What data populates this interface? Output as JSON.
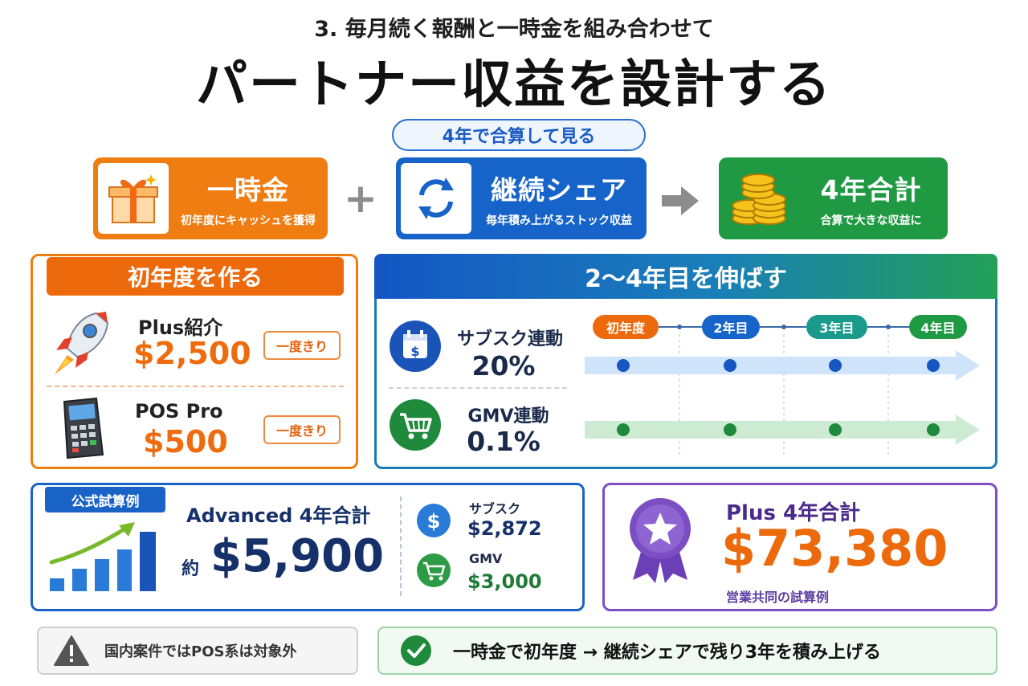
{
  "header": {
    "subtitle": "3. 毎月続く報酬と一時金を組み合わせて",
    "title": "パートナー収益を設計する",
    "pill": "4年で合算して見る"
  },
  "formula": {
    "one_time": {
      "title": "一時金",
      "sub": "初年度にキャッシュを獲得",
      "icon": "gift-icon"
    },
    "plus_sign": "+",
    "recurring": {
      "title": "継続シェア",
      "sub": "毎年積み上がるストック収益",
      "icon": "refresh-icon"
    },
    "total": {
      "title": "4年合計",
      "sub": "合算で大きな収益に",
      "icon": "coins-icon"
    }
  },
  "first_year": {
    "heading": "初年度を作る",
    "items": [
      {
        "name": "Plus紹介",
        "value": "$2,500",
        "badge": "一度きり",
        "icon": "rocket-icon"
      },
      {
        "name": "POS Pro",
        "value": "$500",
        "badge": "一度きり",
        "icon": "pos-terminal-icon"
      }
    ]
  },
  "growth": {
    "heading": "2～4年目を伸ばす",
    "years": [
      "初年度",
      "2年目",
      "3年目",
      "4年目"
    ],
    "streams": [
      {
        "label": "サブスク連動",
        "rate": "20%",
        "icon": "calendar-dollar-icon"
      },
      {
        "label": "GMV連動",
        "rate": "0.1%",
        "icon": "cart-icon"
      }
    ]
  },
  "official_example": {
    "tag": "公式試算例",
    "title": "Advanced 4年合計",
    "approx": "約",
    "value": "$5,900",
    "breakdown": [
      {
        "label": "サブスク",
        "value": "$2,872",
        "icon": "dollar-icon"
      },
      {
        "label": "GMV",
        "value": "$3,000",
        "icon": "cart-icon"
      }
    ]
  },
  "plus_example": {
    "title": "Plus 4年合計",
    "value": "$73,380",
    "note": "営業共同の試算例",
    "icon": "award-star-icon"
  },
  "footer": {
    "warning": "国内案件ではPOS系は対象外",
    "summary": "一時金で初年度 → 継続シェアで残り3年を積み上げる"
  },
  "colors": {
    "orange": "#ec6a0c",
    "blue": "#1663c9",
    "green": "#1f9a43",
    "purple": "#7b4fc3"
  }
}
